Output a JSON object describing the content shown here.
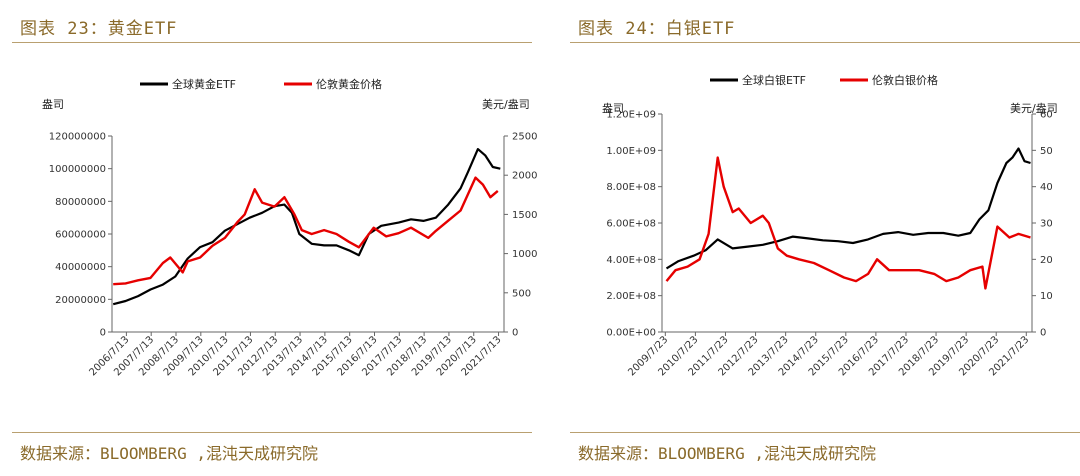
{
  "panels": [
    {
      "title": "图表 23：黄金ETF",
      "source": "数据来源：BLOOMBERG ,混沌天成研究院"
    },
    {
      "title": "图表 24：白银ETF",
      "source": "数据来源：BLOOMBERG ,混沌天成研究院"
    }
  ],
  "chart_data": [
    {
      "type": "line",
      "y_left_label": "盎司",
      "y_right_label": "美元/盎司",
      "ylim_left": [
        0,
        120000000
      ],
      "ylim_right": [
        0,
        2500
      ],
      "yticks_left": [
        "0",
        "20000000",
        "40000000",
        "60000000",
        "80000000",
        "100000000",
        "120000000"
      ],
      "yticks_right": [
        "0",
        "500",
        "1000",
        "1500",
        "2000",
        "2500"
      ],
      "x_ticks": [
        "2006/7/13",
        "2007/7/13",
        "2008/7/13",
        "2009/7/13",
        "2010/7/13",
        "2011/7/13",
        "2012/7/13",
        "2013/7/13",
        "2014/7/13",
        "2015/7/13",
        "2016/7/13",
        "2017/7/13",
        "2018/7/13",
        "2019/7/13",
        "2020/7/13",
        "2021/7/13"
      ],
      "grid": false,
      "legend_position": "top",
      "series": [
        {
          "name": "全球黄金ETF",
          "axis": "left",
          "color": "#000000",
          "x": [
            2006.0,
            2006.5,
            2007.0,
            2007.5,
            2008.0,
            2008.5,
            2009.0,
            2009.5,
            2010.0,
            2010.5,
            2011.0,
            2011.5,
            2012.0,
            2012.5,
            2012.9,
            2013.2,
            2013.5,
            2014.0,
            2014.5,
            2015.0,
            2015.5,
            2015.9,
            2016.3,
            2016.8,
            2017.5,
            2018.0,
            2018.5,
            2019.0,
            2019.5,
            2020.0,
            2020.3,
            2020.7,
            2021.0,
            2021.3,
            2021.6
          ],
          "y": [
            17000000,
            19000000,
            22000000,
            26000000,
            29000000,
            34000000,
            45000000,
            52000000,
            55000000,
            62000000,
            66000000,
            70000000,
            73000000,
            77000000,
            78000000,
            73000000,
            60000000,
            54000000,
            53000000,
            53000000,
            50000000,
            47000000,
            60000000,
            65000000,
            67000000,
            69000000,
            68000000,
            70000000,
            78000000,
            88000000,
            98000000,
            112000000,
            108000000,
            101000000,
            100000000
          ]
        },
        {
          "name": "伦敦黄金价格",
          "axis": "right",
          "color": "#e60000",
          "x": [
            2006.0,
            2006.5,
            2007.0,
            2007.5,
            2008.0,
            2008.3,
            2008.8,
            2009.0,
            2009.5,
            2010.0,
            2010.5,
            2011.0,
            2011.3,
            2011.7,
            2012.0,
            2012.5,
            2012.9,
            2013.3,
            2013.6,
            2014.0,
            2014.5,
            2015.0,
            2015.5,
            2015.9,
            2016.5,
            2017.0,
            2017.5,
            2018.0,
            2018.7,
            2019.0,
            2019.5,
            2020.0,
            2020.6,
            2020.9,
            2021.2,
            2021.5
          ],
          "y": [
            610,
            620,
            660,
            690,
            880,
            950,
            760,
            900,
            950,
            1100,
            1200,
            1400,
            1500,
            1820,
            1650,
            1600,
            1720,
            1500,
            1300,
            1250,
            1300,
            1250,
            1150,
            1080,
            1330,
            1220,
            1260,
            1330,
            1200,
            1290,
            1420,
            1550,
            1970,
            1880,
            1720,
            1800
          ]
        }
      ]
    },
    {
      "type": "line",
      "y_left_label": "盎司",
      "y_right_label": "美元/盎司",
      "ylim_left": [
        0,
        1200000000
      ],
      "ylim_right": [
        0,
        60
      ],
      "yticks_left": [
        "0.00E+00",
        "2.00E+08",
        "4.00E+08",
        "6.00E+08",
        "8.00E+08",
        "1.00E+09",
        "1.20E+09"
      ],
      "yticks_right": [
        "0",
        "10",
        "20",
        "30",
        "40",
        "50",
        "60"
      ],
      "x_ticks": [
        "2009/7/23",
        "2010/7/23",
        "2011/7/23",
        "2012/7/23",
        "2013/7/23",
        "2014/7/23",
        "2015/7/23",
        "2016/7/23",
        "2017/7/23",
        "2018/7/23",
        "2019/7/23",
        "2020/7/23",
        "2021/7/23"
      ],
      "grid": false,
      "legend_position": "top",
      "series": [
        {
          "name": "全球白银ETF",
          "axis": "left",
          "color": "#000000",
          "x": [
            2009.6,
            2010.0,
            2010.5,
            2010.9,
            2011.3,
            2011.8,
            2012.3,
            2012.8,
            2013.3,
            2013.8,
            2014.3,
            2014.8,
            2015.3,
            2015.8,
            2016.3,
            2016.8,
            2017.3,
            2017.8,
            2018.3,
            2018.8,
            2019.3,
            2019.7,
            2020.0,
            2020.3,
            2020.6,
            2020.9,
            2021.1,
            2021.3,
            2021.5,
            2021.7
          ],
          "y": [
            350000000,
            390000000,
            420000000,
            450000000,
            510000000,
            460000000,
            470000000,
            480000000,
            500000000,
            525000000,
            515000000,
            505000000,
            500000000,
            490000000,
            510000000,
            540000000,
            550000000,
            535000000,
            545000000,
            545000000,
            530000000,
            545000000,
            620000000,
            670000000,
            820000000,
            930000000,
            960000000,
            1010000000,
            940000000,
            930000000
          ]
        },
        {
          "name": "伦敦白银价格",
          "axis": "right",
          "color": "#e60000",
          "x": [
            2009.6,
            2009.9,
            2010.3,
            2010.7,
            2011.0,
            2011.3,
            2011.5,
            2011.8,
            2012.0,
            2012.4,
            2012.8,
            2013.0,
            2013.3,
            2013.6,
            2014.0,
            2014.5,
            2015.0,
            2015.5,
            2015.9,
            2016.3,
            2016.6,
            2017.0,
            2017.5,
            2018.0,
            2018.5,
            2018.9,
            2019.3,
            2019.7,
            2020.1,
            2020.2,
            2020.6,
            2021.0,
            2021.3,
            2021.7
          ],
          "y": [
            14,
            17,
            18,
            20,
            27,
            48,
            40,
            33,
            34,
            30,
            32,
            30,
            23,
            21,
            20,
            19,
            17,
            15,
            14,
            16,
            20,
            17,
            17,
            17,
            16,
            14,
            15,
            17,
            18,
            12,
            29,
            26,
            27,
            26
          ]
        }
      ]
    }
  ]
}
